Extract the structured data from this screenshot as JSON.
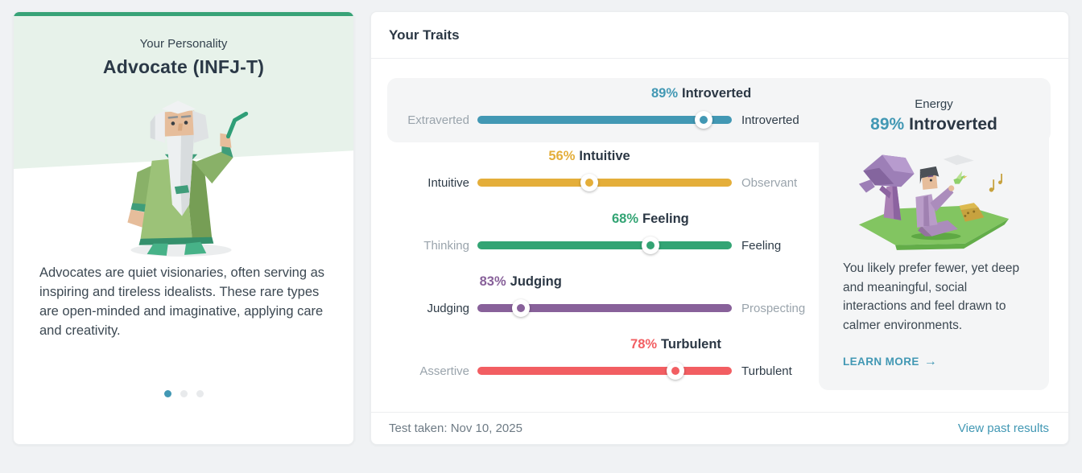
{
  "personality_card": {
    "kicker": "Your Personality",
    "title": "Advocate (INFJ-T)",
    "description": "Advocates are quiet visionaries, often serving as inspiring and tireless idealists. These rare types are open-minded and imaginative, applying care and creativity.",
    "accent_color": "#38a377",
    "carousel": {
      "dot_count": 3,
      "active_index": 0,
      "active_color": "#4298b4",
      "inactive_color": "#e8eaec"
    }
  },
  "traits_card": {
    "title": "Your Traits",
    "traits": [
      {
        "id": "energy",
        "left_label": "Extraverted",
        "right_label": "Introverted",
        "percent": 89,
        "dominant": "Introverted",
        "dominant_side": "right",
        "color": "#4298b4",
        "selected": true
      },
      {
        "id": "mind",
        "left_label": "Intuitive",
        "right_label": "Observant",
        "percent": 56,
        "dominant": "Intuitive",
        "dominant_side": "left",
        "color": "#e4ae3a",
        "selected": false
      },
      {
        "id": "nature",
        "left_label": "Thinking",
        "right_label": "Feeling",
        "percent": 68,
        "dominant": "Feeling",
        "dominant_side": "right",
        "color": "#33a474",
        "selected": false
      },
      {
        "id": "tactics",
        "left_label": "Judging",
        "right_label": "Prospecting",
        "percent": 83,
        "dominant": "Judging",
        "dominant_side": "left",
        "color": "#88619a",
        "selected": false
      },
      {
        "id": "identity",
        "left_label": "Assertive",
        "right_label": "Turbulent",
        "percent": 78,
        "dominant": "Turbulent",
        "dominant_side": "right",
        "color": "#f25e62",
        "selected": false
      }
    ],
    "detail_panel": {
      "category": "Energy",
      "percent": "89%",
      "trait": "Introverted",
      "accent_color": "#4298b4",
      "description": "You likely prefer fewer, yet deep and meaningful, social interactions and feel drawn to calmer environments.",
      "learn_more_label": "LEARN MORE",
      "learn_more_arrow": "→"
    },
    "footer": {
      "test_taken": "Test taken: Nov 10, 2025",
      "view_past_results": "View past results",
      "link_color": "#4298b4"
    }
  }
}
